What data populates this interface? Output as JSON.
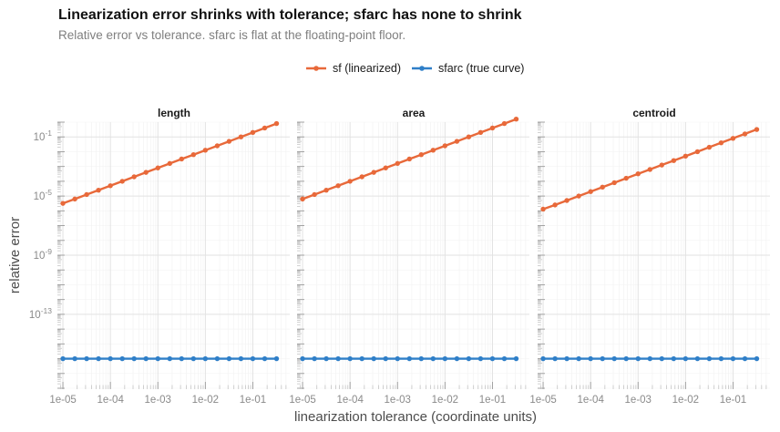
{
  "title": "Linearization error shrinks with tolerance; sfarc has none to shrink",
  "subtitle": "Relative error vs tolerance. sfarc is flat at the floating-point floor.",
  "chart_data": {
    "type": "line",
    "xlabel": "linearization tolerance (coordinate units)",
    "ylabel": "relative error",
    "x_scale": "log10",
    "y_scale": "log10",
    "xlim": [
      8e-06,
      0.6
    ],
    "ylim": [
      1e-18,
      1
    ],
    "x_ticks": [
      "1e-05",
      "1e-04",
      "1e-03",
      "1e-02",
      "1e-01"
    ],
    "y_ticks": [
      "10^-1",
      "10^-5",
      "10^-9",
      "10^-13"
    ],
    "grid": true,
    "legend_position": "top",
    "colors": {
      "sf (linearized)": "#e8693a",
      "sfarc (true curve)": "#2f7fc8"
    },
    "x": [
      1e-05,
      1.78e-05,
      3.16e-05,
      5.62e-05,
      0.0001,
      0.000178,
      0.000316,
      0.000562,
      0.001,
      0.00178,
      0.00316,
      0.00562,
      0.01,
      0.0178,
      0.0316,
      0.0562,
      0.1,
      0.178,
      0.316
    ],
    "panels": [
      {
        "name": "length",
        "series": [
          {
            "name": "sf (linearized)",
            "values": [
              3.2e-06,
              6.3e-06,
              1.26e-05,
              2.5e-05,
              5e-05,
              0.0001,
              0.0002,
              0.0004,
              0.0008,
              0.0016,
              0.0032,
              0.0063,
              0.0126,
              0.025,
              0.05,
              0.1,
              0.2,
              0.4,
              0.8
            ]
          },
          {
            "name": "sfarc (true curve)",
            "values": [
              1e-16,
              1e-16,
              1e-16,
              1e-16,
              1e-16,
              1e-16,
              1e-16,
              1e-16,
              1e-16,
              1e-16,
              1e-16,
              1e-16,
              1e-16,
              1e-16,
              1e-16,
              1e-16,
              1e-16,
              1e-16,
              1e-16
            ]
          }
        ]
      },
      {
        "name": "area",
        "series": [
          {
            "name": "sf (linearized)",
            "values": [
              6.3e-06,
              1.26e-05,
              2.5e-05,
              5e-05,
              0.0001,
              0.0002,
              0.0004,
              0.0008,
              0.0016,
              0.0032,
              0.0063,
              0.0126,
              0.025,
              0.05,
              0.1,
              0.2,
              0.4,
              0.8,
              1.6
            ]
          },
          {
            "name": "sfarc (true curve)",
            "values": [
              1e-16,
              1e-16,
              1e-16,
              1e-16,
              1e-16,
              1e-16,
              1e-16,
              1e-16,
              1e-16,
              1e-16,
              1e-16,
              1e-16,
              1e-16,
              1e-16,
              1e-16,
              1e-16,
              1e-16,
              1e-16,
              1e-16
            ]
          }
        ]
      },
      {
        "name": "centroid",
        "series": [
          {
            "name": "sf (linearized)",
            "values": [
              1.3e-06,
              2.5e-06,
              5e-06,
              1e-05,
              2e-05,
              4e-05,
              8e-05,
              0.00016,
              0.00032,
              0.00063,
              0.00126,
              0.0025,
              0.005,
              0.01,
              0.02,
              0.04,
              0.08,
              0.16,
              0.32
            ]
          },
          {
            "name": "sfarc (true curve)",
            "values": [
              1e-16,
              1e-16,
              1e-16,
              1e-16,
              1e-16,
              1e-16,
              1e-16,
              1e-16,
              1e-16,
              1e-16,
              1e-16,
              1e-16,
              1e-16,
              1e-16,
              1e-16,
              1e-16,
              1e-16,
              1e-16,
              1e-16
            ]
          }
        ]
      }
    ]
  }
}
